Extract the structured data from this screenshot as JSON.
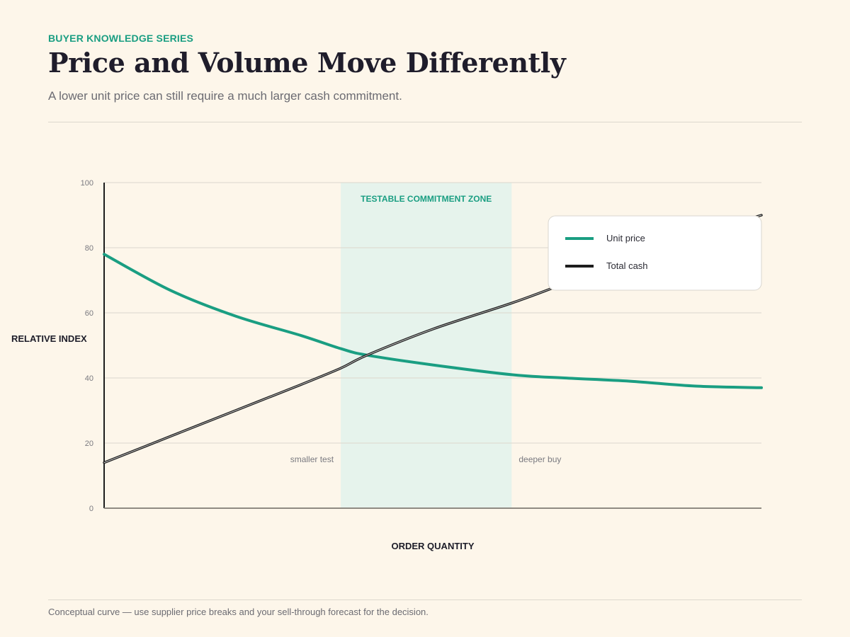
{
  "header": {
    "eyebrow": "BUYER KNOWLEDGE SERIES",
    "title": "Price and Volume Move Differently",
    "subtitle": "A lower unit price can still require a much larger cash commitment."
  },
  "footer": {
    "note": "Conceptual curve — use supplier price breaks and your sell-through forecast for the decision."
  },
  "colors": {
    "background": "#fdf6ea",
    "unit_price": "#1a9e82",
    "total_cash": "#1d1d1d",
    "zone_fill": "#e6f3ec",
    "zone_text": "#1a9e82",
    "grid": "#dcd7cd"
  },
  "chart_data": {
    "type": "line",
    "xlabel": "ORDER QUANTITY",
    "ylabel": "RELATIVE INDEX",
    "xlim": [
      0,
      100
    ],
    "ylim": [
      0,
      100
    ],
    "yticks": [
      0,
      20,
      40,
      60,
      80,
      100
    ],
    "grid": true,
    "legend_position": "top-right",
    "x": [
      0,
      10,
      20,
      30,
      36,
      40,
      50,
      62,
      70,
      80,
      90,
      100
    ],
    "series": [
      {
        "name": "Unit price",
        "color": "#1a9e82",
        "values": [
          78,
          67,
          59,
          53,
          49,
          47,
          44,
          41,
          40,
          39,
          37.5,
          37
        ]
      },
      {
        "name": "Total cash",
        "color": "#1d1d1d",
        "values": [
          14,
          22,
          30,
          38,
          43,
          47,
          55,
          63,
          69,
          77,
          84,
          90
        ]
      }
    ],
    "highlight_zone": {
      "label": "TESTABLE COMMITMENT ZONE",
      "x_start": 36,
      "x_end": 62
    },
    "annotations": [
      {
        "text": "smaller test",
        "x": 36,
        "y": 15,
        "anchor": "end"
      },
      {
        "text": "deeper buy",
        "x": 62,
        "y": 15,
        "anchor": "start"
      }
    ]
  }
}
